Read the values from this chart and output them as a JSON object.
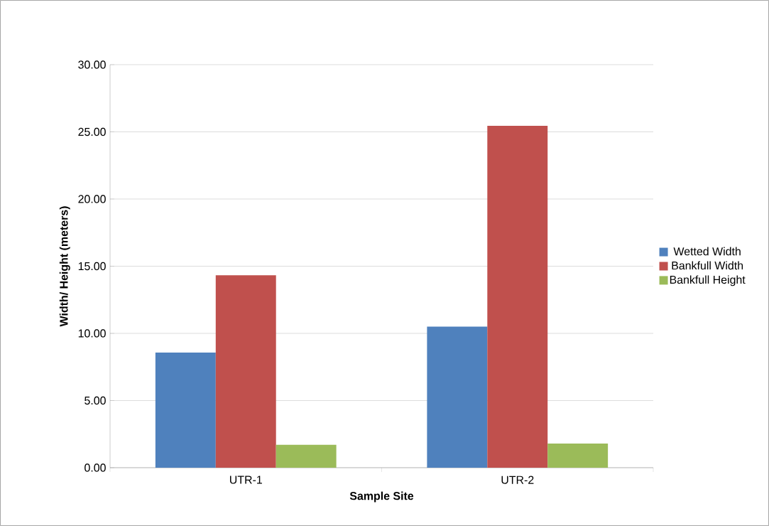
{
  "chart_data": {
    "type": "bar",
    "xlabel": "Sample Site",
    "ylabel": "Width/ Height (meters)",
    "categories": [
      "UTR-1",
      "UTR-2"
    ],
    "series": [
      {
        "name": "Wetted Width",
        "color": "#4f81bd",
        "values": [
          8.57,
          10.5
        ]
      },
      {
        "name": "Bankfull Width",
        "color": "#c0504d",
        "values": [
          14.33,
          25.45
        ]
      },
      {
        "name": "Bankfull Height",
        "color": "#9bbb59",
        "values": [
          1.7,
          1.8
        ]
      }
    ],
    "ylim": [
      0,
      30
    ],
    "yticks": [
      {
        "value": 0,
        "label": "0.00"
      },
      {
        "value": 5,
        "label": "5.00"
      },
      {
        "value": 10,
        "label": "10.00"
      },
      {
        "value": 15,
        "label": "15.00"
      },
      {
        "value": 20,
        "label": "20.00"
      },
      {
        "value": 25,
        "label": "25.00"
      },
      {
        "value": 30,
        "label": "30.00"
      }
    ],
    "grid": "y",
    "legend": "right"
  }
}
